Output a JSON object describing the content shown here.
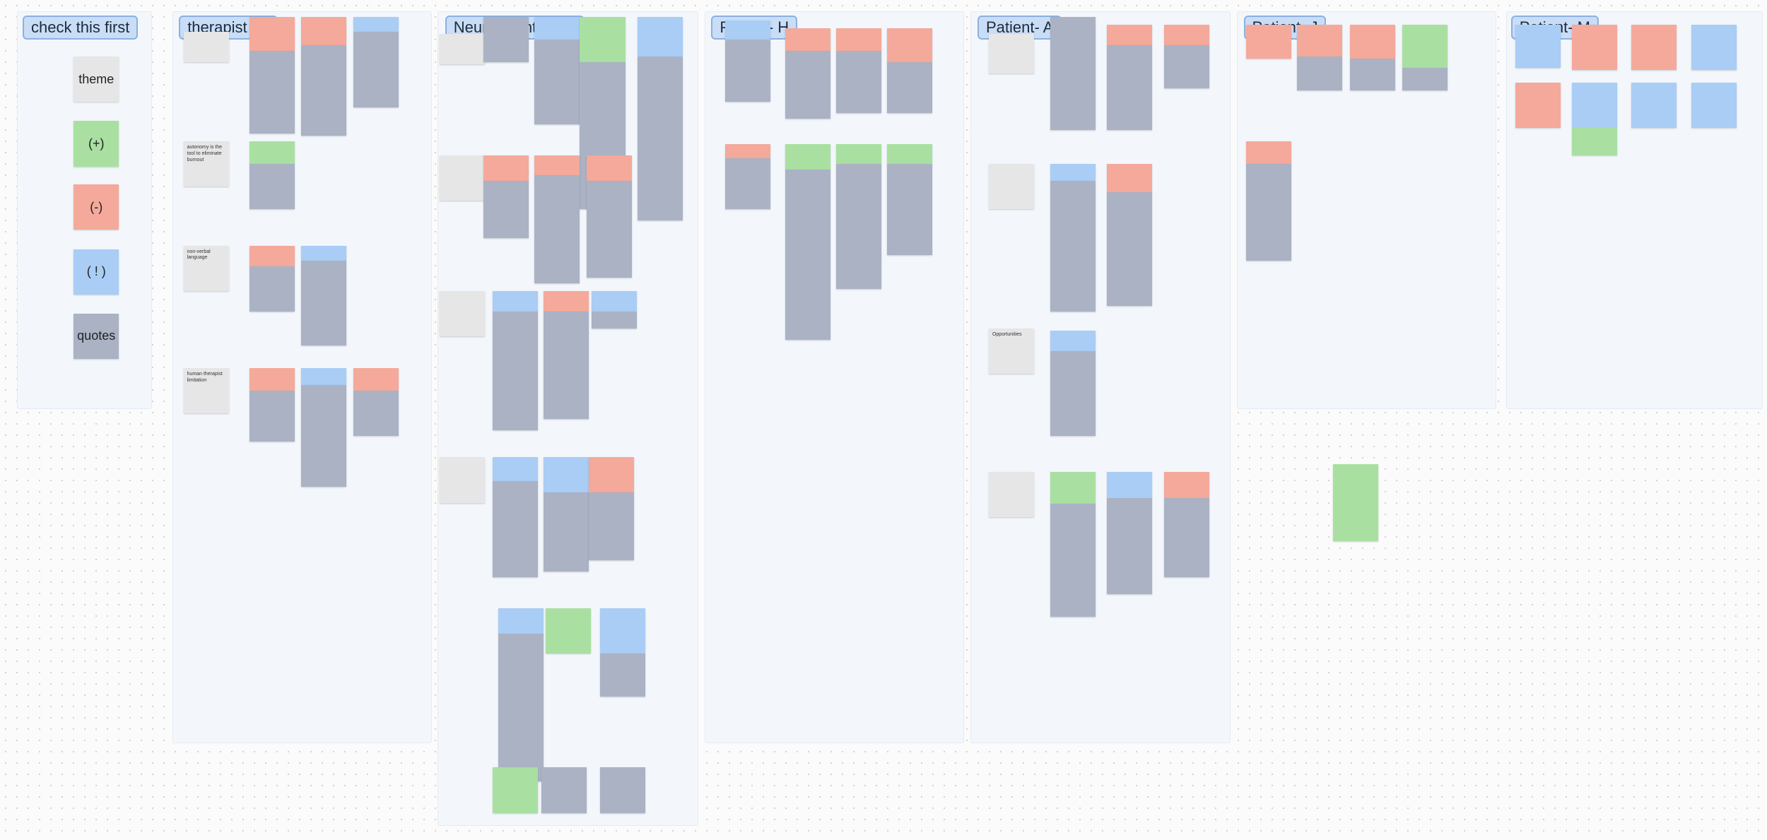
{
  "board": {
    "sections": [
      {
        "title": "check this first"
      },
      {
        "title": "therapist - L"
      },
      {
        "title": "Neuroscientist - K"
      },
      {
        "title": "Patient- H"
      },
      {
        "title": "Patient- A"
      },
      {
        "title": "Patient- J"
      },
      {
        "title": "Patient- M"
      }
    ],
    "legend": [
      "theme",
      "(+)",
      "(-)",
      "( ! )",
      "quotes"
    ],
    "theme_notes": [
      "autonomy is the tool to eliminate burnout",
      "non-verbal language",
      "human therapist limitation",
      "Opportunities"
    ]
  }
}
